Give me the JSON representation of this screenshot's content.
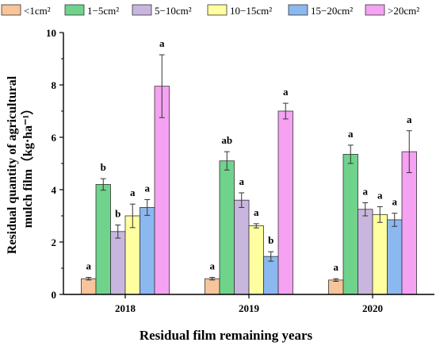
{
  "chart_data": {
    "type": "bar",
    "categories": [
      "2018",
      "2019",
      "2020"
    ],
    "xlabel": "Residual film remaining years",
    "ylabel": "Residual quantity of agricultural mulch film（kg·ha⁻¹）",
    "ylabel_line1": "Residual quantity of agricultural",
    "ylabel_line2": "mulch film（kg·ha⁻¹）",
    "ylim": [
      0,
      10
    ],
    "yticks": [
      0,
      2,
      4,
      6,
      8,
      10
    ],
    "grid": false,
    "legend_position": "top",
    "series": [
      {
        "name": "<1cm²",
        "color": "#F8C49A",
        "values": [
          0.6,
          0.6,
          0.55
        ],
        "errors": [
          0.05,
          0.05,
          0.05
        ],
        "labels": [
          "a",
          "a",
          "a"
        ]
      },
      {
        "name": "1−5cm²",
        "color": "#6FD38C",
        "values": [
          4.2,
          5.1,
          5.35
        ],
        "errors": [
          0.22,
          0.35,
          0.35
        ],
        "labels": [
          "b",
          "ab",
          "a"
        ]
      },
      {
        "name": "5−10cm²",
        "color": "#C9B6DE",
        "values": [
          2.4,
          3.6,
          3.25
        ],
        "errors": [
          0.25,
          0.28,
          0.25
        ],
        "labels": [
          "b",
          "a",
          "a"
        ]
      },
      {
        "name": "10−15cm²",
        "color": "#FFFFA0",
        "values": [
          3.0,
          2.62,
          3.05
        ],
        "errors": [
          0.45,
          0.08,
          0.3
        ],
        "labels": [
          "a",
          "a",
          "a"
        ]
      },
      {
        "name": "15−20cm²",
        "color": "#8CB8F0",
        "values": [
          3.32,
          1.45,
          2.85
        ],
        "errors": [
          0.3,
          0.18,
          0.25
        ],
        "labels": [
          "a",
          "b",
          "a"
        ]
      },
      {
        "name": ">20cm²",
        "color": "#F5A2F2",
        "values": [
          7.95,
          7.0,
          5.45
        ],
        "errors": [
          1.2,
          0.3,
          0.8
        ],
        "labels": [
          "a",
          "a",
          "a"
        ]
      }
    ]
  }
}
